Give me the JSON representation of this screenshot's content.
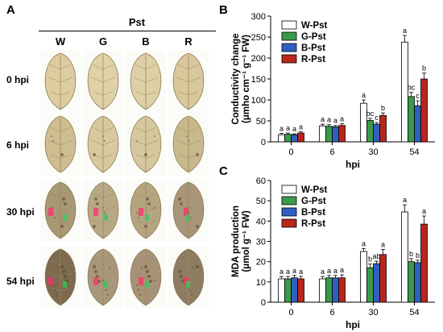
{
  "panel_labels": {
    "a": "A",
    "b": "B",
    "c": "C"
  },
  "photo_grid": {
    "header": "Pst",
    "columns": [
      "W",
      "G",
      "B",
      "R"
    ],
    "rows": [
      "0 hpi",
      "6 hpi",
      "30 hpi",
      "54 hpi"
    ],
    "leaf_colors": {
      "0 hpi": [
        "#ddcca0",
        "#e0d2a8",
        "#ddd0a6",
        "#d8c89c"
      ],
      "6 hpi": [
        "#cdbd90",
        "#d8c9a0",
        "#d6c89e",
        "#c8b98c"
      ],
      "30 hpi": [
        "#a89873",
        "#b8a985",
        "#b5a480",
        "#a8957a"
      ],
      "54 hpi": [
        "#7d6a4f",
        "#a8977a",
        "#a69276",
        "#8e7c62"
      ]
    },
    "highlight_colors": [
      "#ff2d6e",
      "#2ecc5a"
    ]
  },
  "chart_data": [
    {
      "type": "bar",
      "panel": "B",
      "ylabel_line1": "Conductivity change",
      "ylabel_line2": "(μmho cm⁻¹ g⁻¹ FW)",
      "xlabel": "hpi",
      "categories": [
        "0",
        "6",
        "30",
        "54"
      ],
      "ylim": [
        0,
        300
      ],
      "yticks": [
        "0",
        "50",
        "100",
        "150",
        "200",
        "250",
        "300"
      ],
      "series": [
        {
          "name": "W-Pst",
          "color": "#ffffff",
          "values": [
            17,
            38,
            92,
            238
          ],
          "errors": [
            3,
            4,
            8,
            16
          ],
          "letters": [
            "a",
            "a",
            "a",
            "a"
          ]
        },
        {
          "name": "G-Pst",
          "color": "#3a9a4a",
          "values": [
            18,
            37,
            51,
            108
          ],
          "errors": [
            3,
            4,
            5,
            10
          ],
          "letters": [
            "a",
            "a",
            "bc",
            "bc"
          ]
        },
        {
          "name": "B-Pst",
          "color": "#2f5fc0",
          "values": [
            17,
            36,
            42,
            86
          ],
          "errors": [
            2,
            3,
            4,
            12
          ],
          "letters": [
            "a",
            "a",
            "c",
            "c"
          ]
        },
        {
          "name": "R-Pst",
          "color": "#b8261b",
          "values": [
            21,
            39,
            63,
            150
          ],
          "errors": [
            3,
            4,
            6,
            14
          ],
          "letters": [
            "a",
            "a",
            "b",
            "b"
          ]
        }
      ]
    },
    {
      "type": "bar",
      "panel": "C",
      "ylabel_line1": "MDA production",
      "ylabel_line2": "(μmol g⁻¹ FW)",
      "xlabel": "hpi",
      "categories": [
        "0",
        "6",
        "30",
        "54"
      ],
      "ylim": [
        0,
        60
      ],
      "yticks": [
        "0",
        "10",
        "20",
        "30",
        "40",
        "50",
        "60"
      ],
      "series": [
        {
          "name": "W-Pst",
          "color": "#ffffff",
          "values": [
            11.5,
            11.5,
            25,
            44.5
          ],
          "errors": [
            1.2,
            1.2,
            1.5,
            3.5
          ],
          "letters": [
            "a",
            "a",
            "a",
            "a"
          ]
        },
        {
          "name": "G-Pst",
          "color": "#3a9a4a",
          "values": [
            11.5,
            12,
            17,
            20
          ],
          "errors": [
            1.2,
            1.2,
            1.8,
            1.5
          ],
          "letters": [
            "a",
            "a",
            "b",
            "b"
          ]
        },
        {
          "name": "B-Pst",
          "color": "#2f5fc0",
          "values": [
            12,
            12,
            19,
            19.5
          ],
          "errors": [
            1.2,
            1.2,
            1.2,
            1.2
          ],
          "letters": [
            "a",
            "a",
            "ab",
            "b"
          ]
        },
        {
          "name": "R-Pst",
          "color": "#b8261b",
          "values": [
            11.5,
            12,
            23.5,
            38.5
          ],
          "errors": [
            1.2,
            1.5,
            2.5,
            4
          ],
          "letters": [
            "a",
            "a",
            "a",
            "a"
          ]
        }
      ]
    }
  ]
}
